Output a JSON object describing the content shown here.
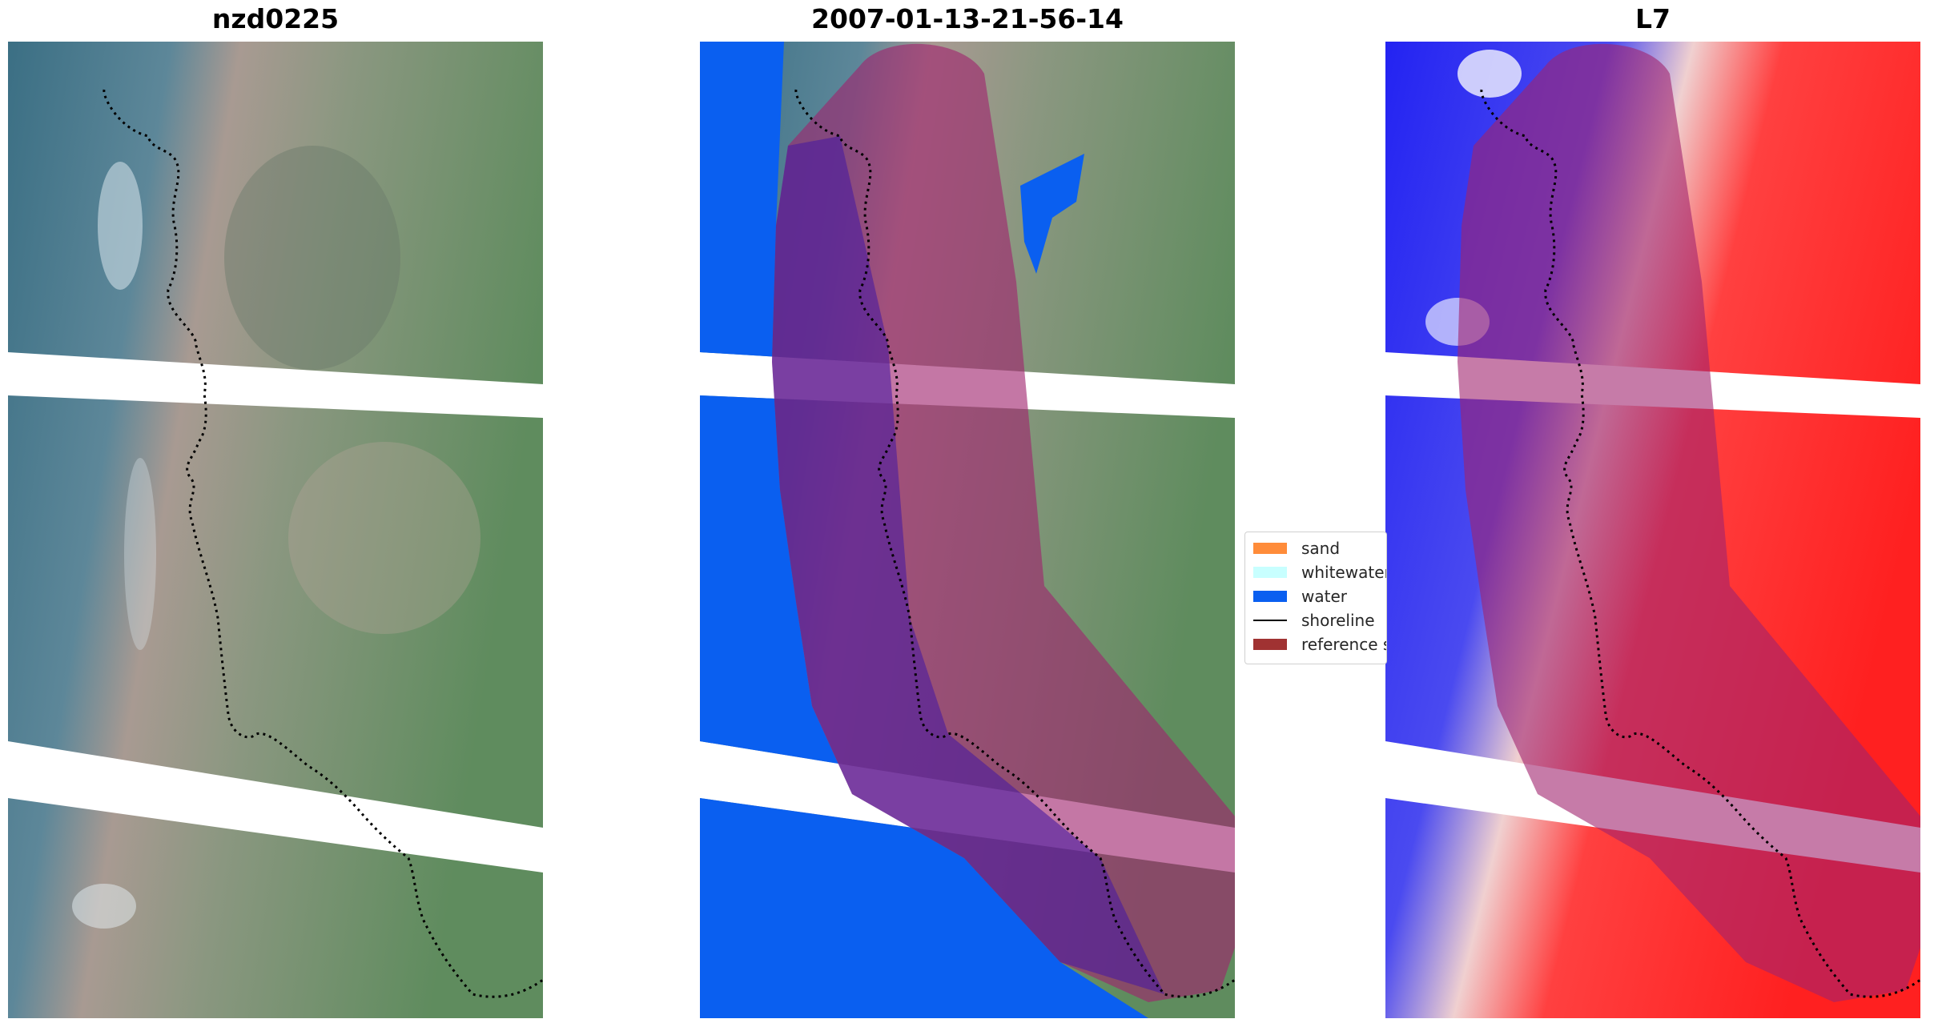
{
  "titles": {
    "left": "nzd0225",
    "middle": "2007-01-13-21-56-14",
    "right": "L7"
  },
  "legend": [
    {
      "label": "sand",
      "color": "#ff8c3a",
      "kind": "patch"
    },
    {
      "label": "whitewater",
      "color": "#c8ffff",
      "kind": "patch"
    },
    {
      "label": "water",
      "color": "#0a5ff0",
      "kind": "patch"
    },
    {
      "label": "shoreline",
      "color": "#000000",
      "kind": "line"
    },
    {
      "label": "reference shoreline buffer",
      "color": "#a03232",
      "kind": "patch"
    }
  ],
  "colors": {
    "water_class": "#0a5ff0",
    "buffer_overlay": "#a0236e",
    "index_positive": "#ff1e1e",
    "index_negative": "#1e1eff"
  }
}
